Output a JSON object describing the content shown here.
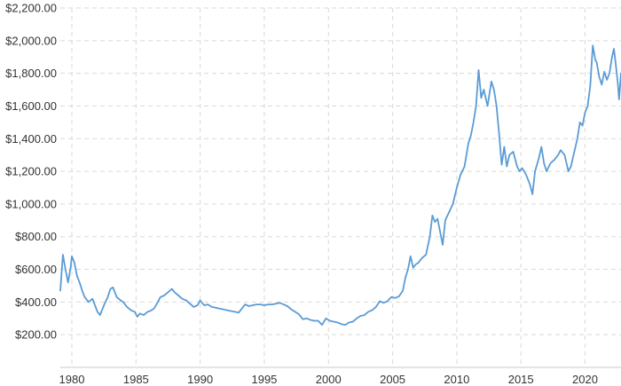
{
  "chart_data": {
    "type": "line",
    "title": "",
    "xlabel": "",
    "ylabel": "",
    "xlim": [
      1979.1,
      2022.8
    ],
    "ylim": [
      0,
      2200
    ],
    "grid": true,
    "line_color": "#5B9BD5",
    "x_ticks": [
      {
        "value": 1980,
        "label": "1980"
      },
      {
        "value": 1985,
        "label": "1985"
      },
      {
        "value": 1990,
        "label": "1990"
      },
      {
        "value": 1995,
        "label": "1995"
      },
      {
        "value": 2000,
        "label": "2000"
      },
      {
        "value": 2005,
        "label": "2005"
      },
      {
        "value": 2010,
        "label": "2010"
      },
      {
        "value": 2015,
        "label": "2015"
      },
      {
        "value": 2020,
        "label": "2020"
      }
    ],
    "y_ticks": [
      {
        "value": 200,
        "label": "$200.00"
      },
      {
        "value": 400,
        "label": "$400.00"
      },
      {
        "value": 600,
        "label": "$600.00"
      },
      {
        "value": 800,
        "label": "$800.00"
      },
      {
        "value": 1000,
        "label": "$1,000.00"
      },
      {
        "value": 1200,
        "label": "$1,200.00"
      },
      {
        "value": 1400,
        "label": "$1,400.00"
      },
      {
        "value": 1600,
        "label": "$1,600.00"
      },
      {
        "value": 1800,
        "label": "$1,800.00"
      },
      {
        "value": 2000,
        "label": "$2,000.00"
      },
      {
        "value": 2200,
        "label": "$2,200.00"
      }
    ],
    "series": [
      {
        "points": [
          [
            1979.1,
            470
          ],
          [
            1979.3,
            690
          ],
          [
            1979.5,
            600
          ],
          [
            1979.7,
            520
          ],
          [
            1979.9,
            610
          ],
          [
            1980.0,
            680
          ],
          [
            1980.2,
            640
          ],
          [
            1980.4,
            560
          ],
          [
            1980.6,
            520
          ],
          [
            1980.8,
            470
          ],
          [
            1981.0,
            430
          ],
          [
            1981.3,
            400
          ],
          [
            1981.6,
            420
          ],
          [
            1981.8,
            380
          ],
          [
            1982.0,
            340
          ],
          [
            1982.2,
            320
          ],
          [
            1982.5,
            380
          ],
          [
            1982.8,
            430
          ],
          [
            1983.0,
            480
          ],
          [
            1983.2,
            490
          ],
          [
            1983.5,
            430
          ],
          [
            1983.8,
            410
          ],
          [
            1984.0,
            400
          ],
          [
            1984.3,
            370
          ],
          [
            1984.6,
            350
          ],
          [
            1984.9,
            340
          ],
          [
            1985.1,
            310
          ],
          [
            1985.3,
            330
          ],
          [
            1985.6,
            320
          ],
          [
            1985.9,
            340
          ],
          [
            1986.1,
            345
          ],
          [
            1986.4,
            360
          ],
          [
            1986.7,
            400
          ],
          [
            1986.9,
            430
          ],
          [
            1987.2,
            440
          ],
          [
            1987.5,
            460
          ],
          [
            1987.8,
            480
          ],
          [
            1988.0,
            460
          ],
          [
            1988.3,
            440
          ],
          [
            1988.6,
            420
          ],
          [
            1988.9,
            410
          ],
          [
            1989.2,
            390
          ],
          [
            1989.5,
            370
          ],
          [
            1989.8,
            380
          ],
          [
            1990.0,
            410
          ],
          [
            1990.3,
            380
          ],
          [
            1990.6,
            385
          ],
          [
            1990.9,
            370
          ],
          [
            1991.2,
            365
          ],
          [
            1991.5,
            360
          ],
          [
            1991.8,
            355
          ],
          [
            1992.1,
            350
          ],
          [
            1992.4,
            345
          ],
          [
            1992.7,
            340
          ],
          [
            1993.0,
            335
          ],
          [
            1993.3,
            365
          ],
          [
            1993.5,
            385
          ],
          [
            1993.8,
            375
          ],
          [
            1994.1,
            380
          ],
          [
            1994.4,
            385
          ],
          [
            1994.7,
            385
          ],
          [
            1995.0,
            380
          ],
          [
            1995.3,
            385
          ],
          [
            1995.6,
            385
          ],
          [
            1995.9,
            390
          ],
          [
            1996.2,
            395
          ],
          [
            1996.5,
            385
          ],
          [
            1996.8,
            375
          ],
          [
            1997.1,
            355
          ],
          [
            1997.4,
            340
          ],
          [
            1997.7,
            325
          ],
          [
            1998.0,
            295
          ],
          [
            1998.3,
            300
          ],
          [
            1998.6,
            290
          ],
          [
            1998.9,
            285
          ],
          [
            1999.2,
            285
          ],
          [
            1999.5,
            260
          ],
          [
            1999.8,
            300
          ],
          [
            2000.1,
            285
          ],
          [
            2000.4,
            280
          ],
          [
            2000.7,
            275
          ],
          [
            2001.0,
            265
          ],
          [
            2001.3,
            260
          ],
          [
            2001.6,
            275
          ],
          [
            2001.9,
            280
          ],
          [
            2002.2,
            300
          ],
          [
            2002.5,
            315
          ],
          [
            2002.8,
            320
          ],
          [
            2003.1,
            340
          ],
          [
            2003.4,
            350
          ],
          [
            2003.7,
            370
          ],
          [
            2004.0,
            405
          ],
          [
            2004.3,
            395
          ],
          [
            2004.6,
            405
          ],
          [
            2004.9,
            430
          ],
          [
            2005.2,
            425
          ],
          [
            2005.5,
            435
          ],
          [
            2005.8,
            470
          ],
          [
            2006.0,
            550
          ],
          [
            2006.2,
            600
          ],
          [
            2006.4,
            680
          ],
          [
            2006.6,
            610
          ],
          [
            2006.8,
            630
          ],
          [
            2007.0,
            640
          ],
          [
            2007.3,
            670
          ],
          [
            2007.6,
            690
          ],
          [
            2007.9,
            800
          ],
          [
            2008.1,
            930
          ],
          [
            2008.3,
            890
          ],
          [
            2008.5,
            910
          ],
          [
            2008.7,
            830
          ],
          [
            2008.9,
            750
          ],
          [
            2009.1,
            900
          ],
          [
            2009.4,
            950
          ],
          [
            2009.7,
            1000
          ],
          [
            2010.0,
            1100
          ],
          [
            2010.3,
            1180
          ],
          [
            2010.6,
            1230
          ],
          [
            2010.9,
            1370
          ],
          [
            2011.1,
            1420
          ],
          [
            2011.3,
            1500
          ],
          [
            2011.5,
            1600
          ],
          [
            2011.7,
            1820
          ],
          [
            2011.9,
            1650
          ],
          [
            2012.1,
            1700
          ],
          [
            2012.4,
            1600
          ],
          [
            2012.7,
            1750
          ],
          [
            2012.9,
            1700
          ],
          [
            2013.1,
            1600
          ],
          [
            2013.3,
            1430
          ],
          [
            2013.5,
            1240
          ],
          [
            2013.7,
            1350
          ],
          [
            2013.9,
            1230
          ],
          [
            2014.1,
            1300
          ],
          [
            2014.4,
            1320
          ],
          [
            2014.7,
            1230
          ],
          [
            2014.9,
            1200
          ],
          [
            2015.1,
            1220
          ],
          [
            2015.4,
            1180
          ],
          [
            2015.7,
            1120
          ],
          [
            2015.9,
            1060
          ],
          [
            2016.1,
            1200
          ],
          [
            2016.4,
            1280
          ],
          [
            2016.6,
            1350
          ],
          [
            2016.8,
            1250
          ],
          [
            2017.0,
            1200
          ],
          [
            2017.3,
            1250
          ],
          [
            2017.6,
            1270
          ],
          [
            2017.9,
            1300
          ],
          [
            2018.1,
            1330
          ],
          [
            2018.4,
            1300
          ],
          [
            2018.7,
            1200
          ],
          [
            2018.9,
            1230
          ],
          [
            2019.1,
            1300
          ],
          [
            2019.4,
            1400
          ],
          [
            2019.6,
            1500
          ],
          [
            2019.8,
            1480
          ],
          [
            2020.0,
            1560
          ],
          [
            2020.2,
            1600
          ],
          [
            2020.4,
            1720
          ],
          [
            2020.6,
            1970
          ],
          [
            2020.8,
            1880
          ],
          [
            2020.9,
            1870
          ],
          [
            2021.1,
            1780
          ],
          [
            2021.3,
            1730
          ],
          [
            2021.5,
            1810
          ],
          [
            2021.7,
            1760
          ],
          [
            2021.9,
            1800
          ],
          [
            2022.1,
            1900
          ],
          [
            2022.25,
            1950
          ],
          [
            2022.4,
            1850
          ],
          [
            2022.55,
            1740
          ],
          [
            2022.65,
            1640
          ],
          [
            2022.8,
            1800
          ]
        ]
      }
    ]
  }
}
